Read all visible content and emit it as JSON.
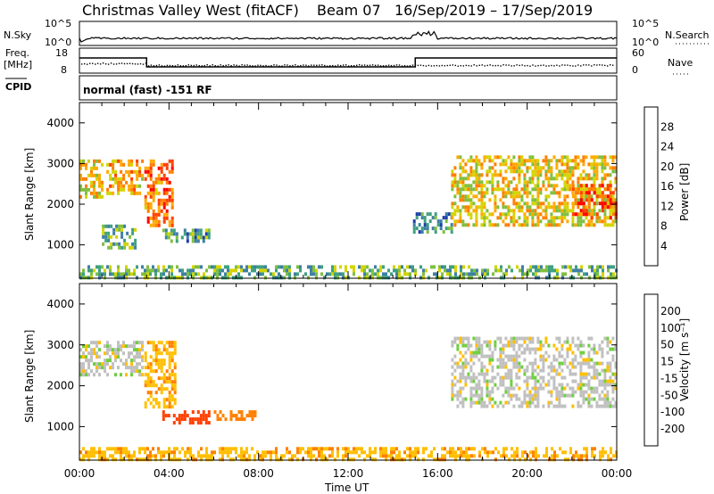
{
  "header": {
    "station": "Christmas Valley West (fitACF)",
    "beam": "Beam 07",
    "date_range": "16/Sep/2019 – 17/Sep/2019"
  },
  "top_panels": {
    "nsky_label": "N.Sky",
    "nsky_ticks": [
      "10^5",
      "10^0"
    ],
    "nsearch_label": "N.Search",
    "nsearch_ticks": [
      "10^5",
      "10^0"
    ],
    "freq_label": "Freq.",
    "freq_unit": "[MHz]",
    "freq_ticks": [
      "18",
      "8"
    ],
    "nave_label": "Nave",
    "nave_ticks": [
      "60",
      "0"
    ],
    "cpid_label": "CPID",
    "cpid_text": "normal (fast) -151 RF"
  },
  "colorbars": {
    "power": {
      "label": "Power [dB]",
      "ticks": [
        "28",
        "24",
        "20",
        "16",
        "12",
        "8",
        "4"
      ],
      "colors": [
        "#0000ff",
        "#1e3fa8",
        "#3f7fa6",
        "#3fa07f",
        "#7fbf3f",
        "#d4d400",
        "#ffaa00",
        "#ff7f00",
        "#ff3f00",
        "#ff0000"
      ]
    },
    "velocity": {
      "label": "Velocity [m s⁻¹]",
      "ticks": [
        "200",
        "100",
        "50",
        "15",
        "-15",
        "-50",
        "-100",
        "-200"
      ],
      "colors": [
        "#0000d0",
        "#1e3fa8",
        "#3f8f7f",
        "#6fcf3f",
        "#c0c0c0",
        "#ffbf00",
        "#ff8000",
        "#ff4000",
        "#ff0000"
      ]
    }
  },
  "chart_data": [
    {
      "type": "heatmap",
      "title": "Power",
      "xlabel": "Time UT",
      "ylabel": "Slant Range [km]",
      "xlim": [
        0,
        24
      ],
      "ylim": [
        180,
        4500
      ],
      "x_ticks": [
        "00:00",
        "04:00",
        "08:00",
        "12:00",
        "16:00",
        "20:00",
        "00:00"
      ],
      "y_ticks": [
        1000,
        2000,
        3000,
        4000
      ],
      "colorbar": "Power [dB]",
      "echo_regions": [
        {
          "t": [
            0.0,
            1.0
          ],
          "range": [
            2200,
            3100
          ],
          "power": 20
        },
        {
          "t": [
            1.2,
            2.8
          ],
          "range": [
            2300,
            3100
          ],
          "power": 22
        },
        {
          "t": [
            2.9,
            4.2
          ],
          "range": [
            1500,
            3100
          ],
          "power": 26
        },
        {
          "t": [
            1.0,
            2.5
          ],
          "range": [
            900,
            1500
          ],
          "power": 14
        },
        {
          "t": [
            3.7,
            5.8
          ],
          "range": [
            1100,
            1400
          ],
          "power": 12
        },
        {
          "t": [
            14.9,
            16.6
          ],
          "range": [
            1300,
            1800
          ],
          "power": 10
        },
        {
          "t": [
            16.6,
            24.0
          ],
          "range": [
            1500,
            3200
          ],
          "power": 20
        },
        {
          "t": [
            22.0,
            24.0
          ],
          "range": [
            1700,
            2500
          ],
          "power": 28
        },
        {
          "t": [
            0.0,
            24.0
          ],
          "range": [
            180,
            500
          ],
          "power": 14
        }
      ]
    },
    {
      "type": "heatmap",
      "title": "Velocity",
      "xlabel": "Time UT",
      "ylabel": "Slant Range [km]",
      "xlim": [
        0,
        24
      ],
      "ylim": [
        180,
        4500
      ],
      "x_ticks": [
        "00:00",
        "04:00",
        "08:00",
        "12:00",
        "16:00",
        "20:00",
        "00:00"
      ],
      "y_ticks": [
        1000,
        2000,
        3000,
        4000
      ],
      "colorbar": "Velocity [m s⁻¹]",
      "echo_regions": [
        {
          "t": [
            0.0,
            2.8
          ],
          "range": [
            2300,
            3100
          ],
          "velocity": 0
        },
        {
          "t": [
            2.9,
            4.3
          ],
          "range": [
            1500,
            3100
          ],
          "velocity": -40
        },
        {
          "t": [
            3.7,
            5.8
          ],
          "range": [
            1100,
            1400
          ],
          "velocity": -120
        },
        {
          "t": [
            6.0,
            7.8
          ],
          "range": [
            1200,
            1400
          ],
          "velocity": -70
        },
        {
          "t": [
            16.6,
            24.0
          ],
          "range": [
            1500,
            3200
          ],
          "velocity": 0
        },
        {
          "t": [
            0.0,
            24.0
          ],
          "range": [
            180,
            500
          ],
          "velocity": -40
        }
      ]
    }
  ]
}
